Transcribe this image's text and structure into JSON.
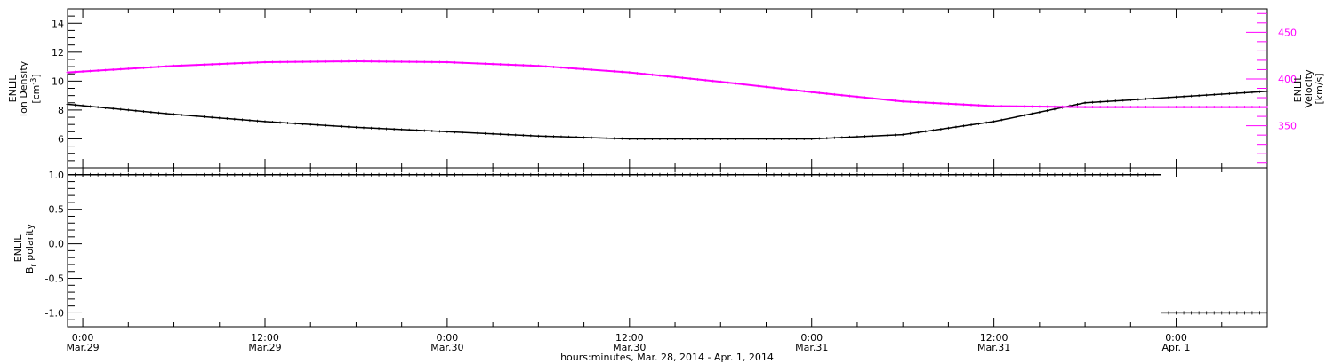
{
  "colors": {
    "density": "#000000",
    "velocity": "#ff00ff",
    "polarity": "#000000",
    "frame": "#000000"
  },
  "xaxis": {
    "label": "hours:minutes, Mar. 28, 2014 - Apr.  1, 2014",
    "ticks": [
      {
        "hour": 0,
        "time": "0:00",
        "date": "Mar.29"
      },
      {
        "hour": 12,
        "time": "12:00",
        "date": "Mar.29"
      },
      {
        "hour": 24,
        "time": "0:00",
        "date": "Mar.30"
      },
      {
        "hour": 36,
        "time": "12:00",
        "date": "Mar.30"
      },
      {
        "hour": 48,
        "time": "0:00",
        "date": "Mar.31"
      },
      {
        "hour": 60,
        "time": "12:00",
        "date": "Mar.31"
      },
      {
        "hour": 72,
        "time": "0:00",
        "date": "Apr. 1"
      }
    ],
    "range_hours": [
      -1,
      78
    ]
  },
  "chart_data": [
    {
      "type": "line",
      "panel": "top",
      "ylabel_left": {
        "line1": "ENLIL",
        "line2": "Ion Density",
        "unit_pre": "[cm",
        "unit_sup": "-3",
        "unit_post": "]"
      },
      "ylabel_right": {
        "line1": "ENLIL",
        "line2": "Velocity",
        "line3": "[km/s]"
      },
      "ylim_left": [
        4,
        15
      ],
      "ylim_right": [
        305,
        475
      ],
      "yticks_left": [
        "6",
        "8",
        "10",
        "12",
        "14"
      ],
      "yticks_right": [
        "350",
        "400",
        "450"
      ],
      "x_unit": "hours from Mar.29 0:00",
      "series": [
        {
          "axis": "left",
          "x": [
            -1,
            6,
            12,
            18,
            24,
            30,
            36,
            42,
            48,
            54,
            60,
            66,
            72,
            78
          ],
          "values": [
            8.4,
            7.7,
            7.2,
            6.8,
            6.5,
            6.2,
            6.0,
            6.0,
            6.0,
            6.3,
            7.2,
            8.5,
            8.9,
            9.3
          ]
        },
        {
          "axis": "right",
          "x": [
            -1,
            6,
            12,
            18,
            24,
            30,
            36,
            42,
            48,
            54,
            60,
            66,
            72,
            78
          ],
          "values": [
            407,
            414,
            418,
            419,
            418,
            414,
            407,
            397,
            386,
            376,
            371,
            370,
            370,
            370
          ]
        }
      ]
    },
    {
      "type": "scatter",
      "panel": "bottom",
      "ylabel": {
        "line1": "ENLIL",
        "line2": "B",
        "sub": "r",
        "line2_tail": " polarity"
      },
      "ylim": [
        -1.2,
        1.1
      ],
      "yticks": [
        "1.0",
        "0.5",
        "0.0",
        "-0.5",
        "-1.0"
      ],
      "x_unit": "hours from Mar.29 0:00",
      "series": [
        {
          "x_start": -1,
          "x_end": 71,
          "value": 1.0
        },
        {
          "x_start": 71,
          "x_end": 78,
          "value": -1.0
        }
      ]
    }
  ]
}
